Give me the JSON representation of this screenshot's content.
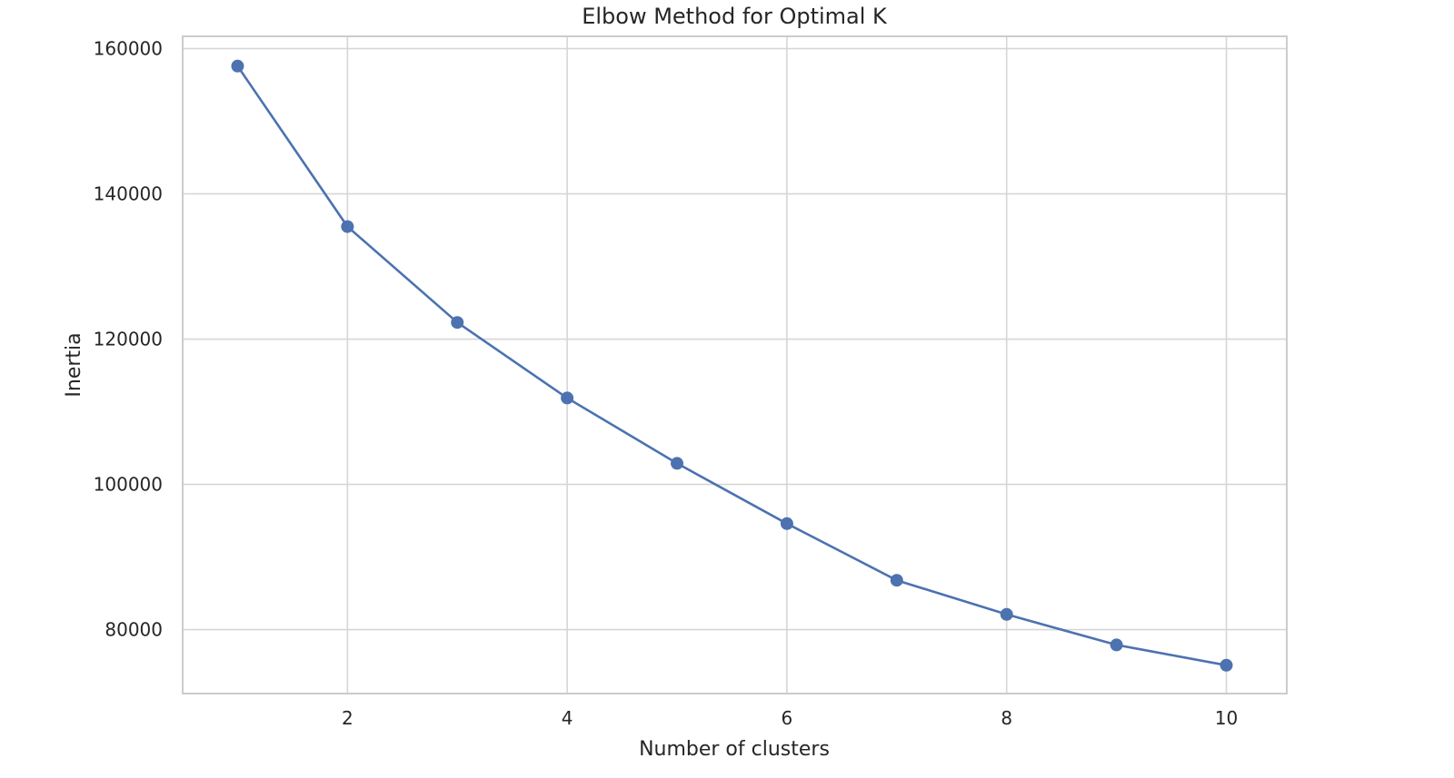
{
  "chart_data": {
    "type": "line",
    "title": "Elbow Method for Optimal K",
    "xlabel": "Number of clusters",
    "ylabel": "Inertia",
    "x": [
      1,
      2,
      3,
      4,
      5,
      6,
      7,
      8,
      9,
      10
    ],
    "series": [
      {
        "values": [
          157600,
          135500,
          122300,
          111900,
          102900,
          94600,
          86800,
          82100,
          77900,
          75100
        ]
      }
    ],
    "xlim": [
      0.5,
      10.55
    ],
    "ylim": [
      71200,
      161700
    ],
    "xticks": [
      2,
      4,
      6,
      8,
      10
    ],
    "yticks": [
      80000,
      100000,
      120000,
      140000,
      160000
    ],
    "grid": true,
    "marker": "circle",
    "colors": {
      "line": "#4c72b0",
      "grid": "#d6d6d6",
      "frame": "#cccccc",
      "text": "#262626"
    }
  }
}
